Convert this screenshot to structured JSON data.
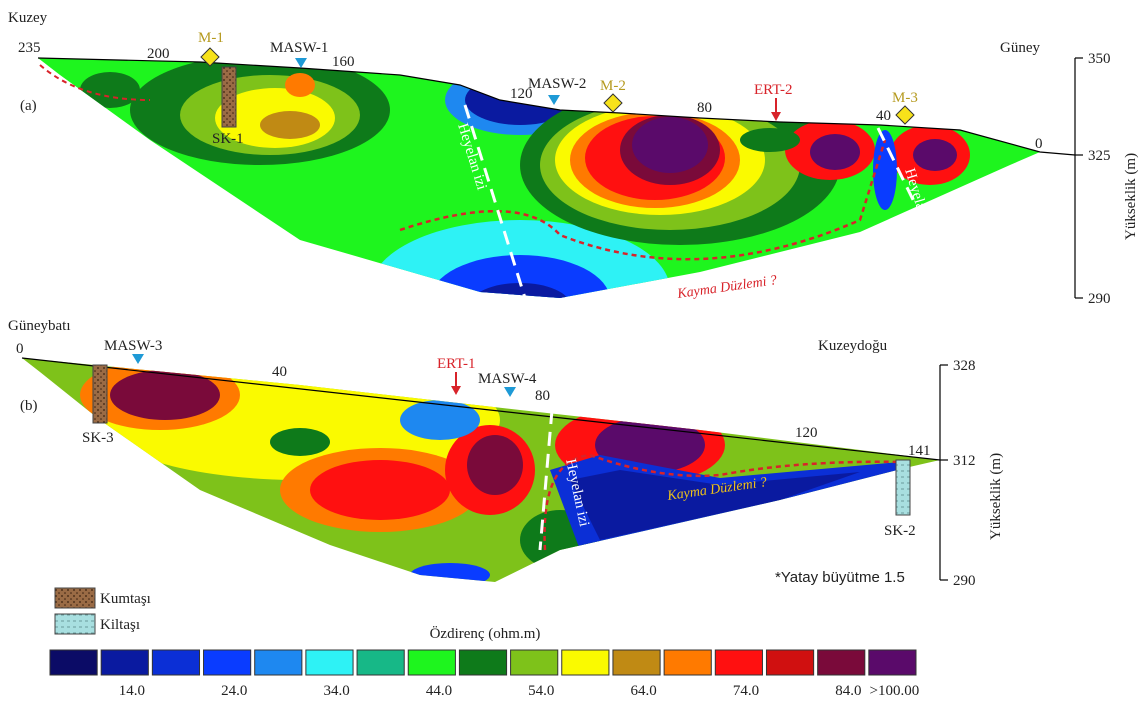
{
  "panel_a": {
    "label": "(a)",
    "left_direction": "Kuzey",
    "right_direction": "Güney",
    "distance_ticks": [
      "235",
      "200",
      "160",
      "120",
      "80",
      "40",
      "0"
    ],
    "markers": {
      "m1": "M-1",
      "masw1": "MASW-1",
      "masw2": "MASW-2",
      "m2": "M-2",
      "ert2": "ERT-2",
      "m3": "M-3"
    },
    "borehole": "SK-1",
    "landslide_trace_1": "Heyelan izi",
    "landslide_trace_2": "Heyelan izi",
    "slip_plane": "Kayma Düzlemi ?",
    "elevation_title": "Yükseklik (m)",
    "elevation_ticks": [
      "350",
      "325",
      "290"
    ]
  },
  "panel_b": {
    "label": "(b)",
    "left_direction": "Güneybatı",
    "right_direction": "Kuzeydoğu",
    "distance_ticks": [
      "0",
      "40",
      "80",
      "120",
      "141"
    ],
    "markers": {
      "masw3": "MASW-3",
      "ert1": "ERT-1",
      "masw4": "MASW-4"
    },
    "borehole_1": "SK-3",
    "borehole_2": "SK-2",
    "landslide_trace": "Heyelan izi",
    "slip_plane": "Kayma Düzlemi ?",
    "elevation_title": "Yükseklik (m)",
    "elevation_ticks": [
      "328",
      "312",
      "290"
    ],
    "note": "*Yatay büyütme 1.5"
  },
  "legend": {
    "lithology": [
      "Kumtaşı",
      "Kiltaşı"
    ],
    "colorbar_title": "Özdirenç (ohm.m)",
    "colors": [
      "#0b0b66",
      "#0a1aa0",
      "#0b2fd6",
      "#0a3cff",
      "#1e88f0",
      "#2ef2f5",
      "#17b887",
      "#1ef51e",
      "#0e7a1a",
      "#7ec21a",
      "#fafa00",
      "#c08a14",
      "#ff7a00",
      "#ff1010",
      "#d01010",
      "#7a0a3a",
      "#5a0a6a"
    ],
    "labels": [
      "14.0",
      "24.0",
      "34.0",
      "44.0",
      "54.0",
      "64.0",
      "74.0",
      "84.0",
      ">100.00"
    ]
  }
}
